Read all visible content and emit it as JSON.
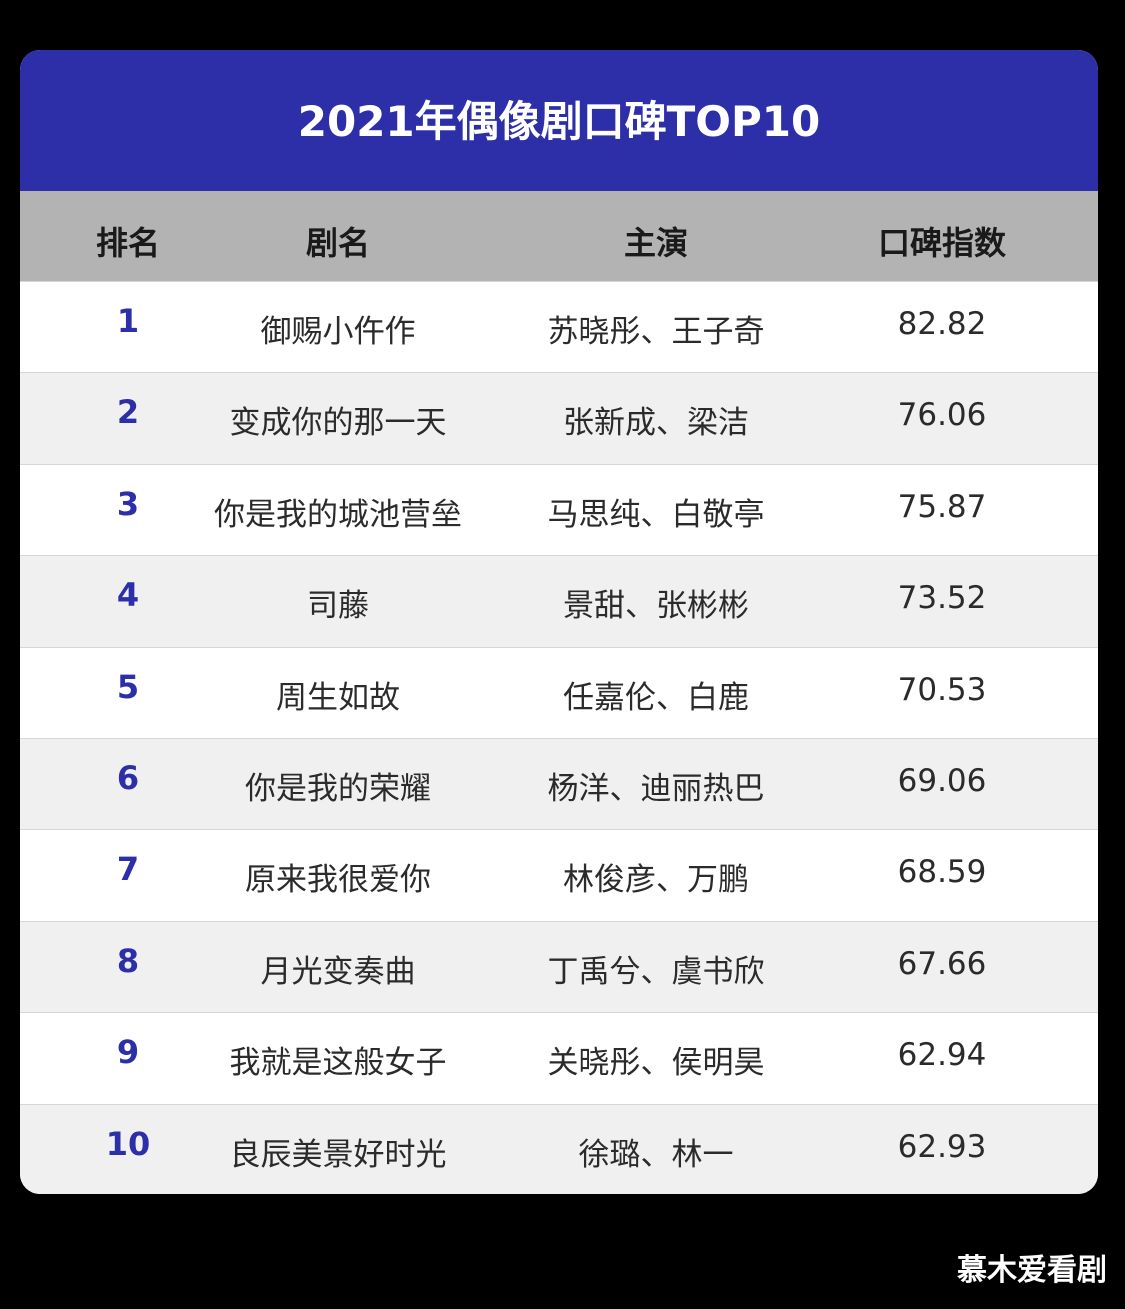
{
  "title": "2021年偶像剧口碑TOP10",
  "columns": [
    "排名",
    "剧名",
    "主演",
    "口碑指数"
  ],
  "rows": [
    {
      "rank": "1",
      "name": "御赐小仵作",
      "cast": "苏晓彤、王子奇",
      "score": "82.82"
    },
    {
      "rank": "2",
      "name": "变成你的那一天",
      "cast": "张新成、梁洁",
      "score": "76.06"
    },
    {
      "rank": "3",
      "name": "你是我的城池营垒",
      "cast": "马思纯、白敬亭",
      "score": "75.87"
    },
    {
      "rank": "4",
      "name": "司藤",
      "cast": "景甜、张彬彬",
      "score": "73.52"
    },
    {
      "rank": "5",
      "name": "周生如故",
      "cast": "任嘉伦、白鹿",
      "score": "70.53"
    },
    {
      "rank": "6",
      "name": "你是我的荣耀",
      "cast": "杨洋、迪丽热巴",
      "score": "69.06"
    },
    {
      "rank": "7",
      "name": "原来我很爱你",
      "cast": "林俊彦、万鹏",
      "score": "68.59"
    },
    {
      "rank": "8",
      "name": "月光变奏曲",
      "cast": "丁禹兮、虞书欣",
      "score": "67.66"
    },
    {
      "rank": "9",
      "name": "我就是这般女子",
      "cast": "关晓彤、侯明昊",
      "score": "62.94"
    },
    {
      "rank": "10",
      "name": "良辰美景好时光",
      "cast": "徐璐、林一",
      "score": "62.93"
    }
  ],
  "watermark": "慕木爱看剧",
  "colors": {
    "title_bg": "#2d2fa8",
    "header_bg": "#b3b3b3",
    "rank_text": "#2d2fa8",
    "row_alt_bg": "#f0f0f0",
    "page_bg": "#000000"
  },
  "chart_data": {
    "type": "table",
    "title": "2021年偶像剧口碑TOP10",
    "columns": [
      "排名",
      "剧名",
      "主演",
      "口碑指数"
    ],
    "categories": [
      "御赐小仵作",
      "变成你的那一天",
      "你是我的城池营垒",
      "司藤",
      "周生如故",
      "你是我的荣耀",
      "原来我很爱你",
      "月光变奏曲",
      "我就是这般女子",
      "良辰美景好时光"
    ],
    "values": [
      82.82,
      76.06,
      75.87,
      73.52,
      70.53,
      69.06,
      68.59,
      67.66,
      62.94,
      62.93
    ]
  }
}
